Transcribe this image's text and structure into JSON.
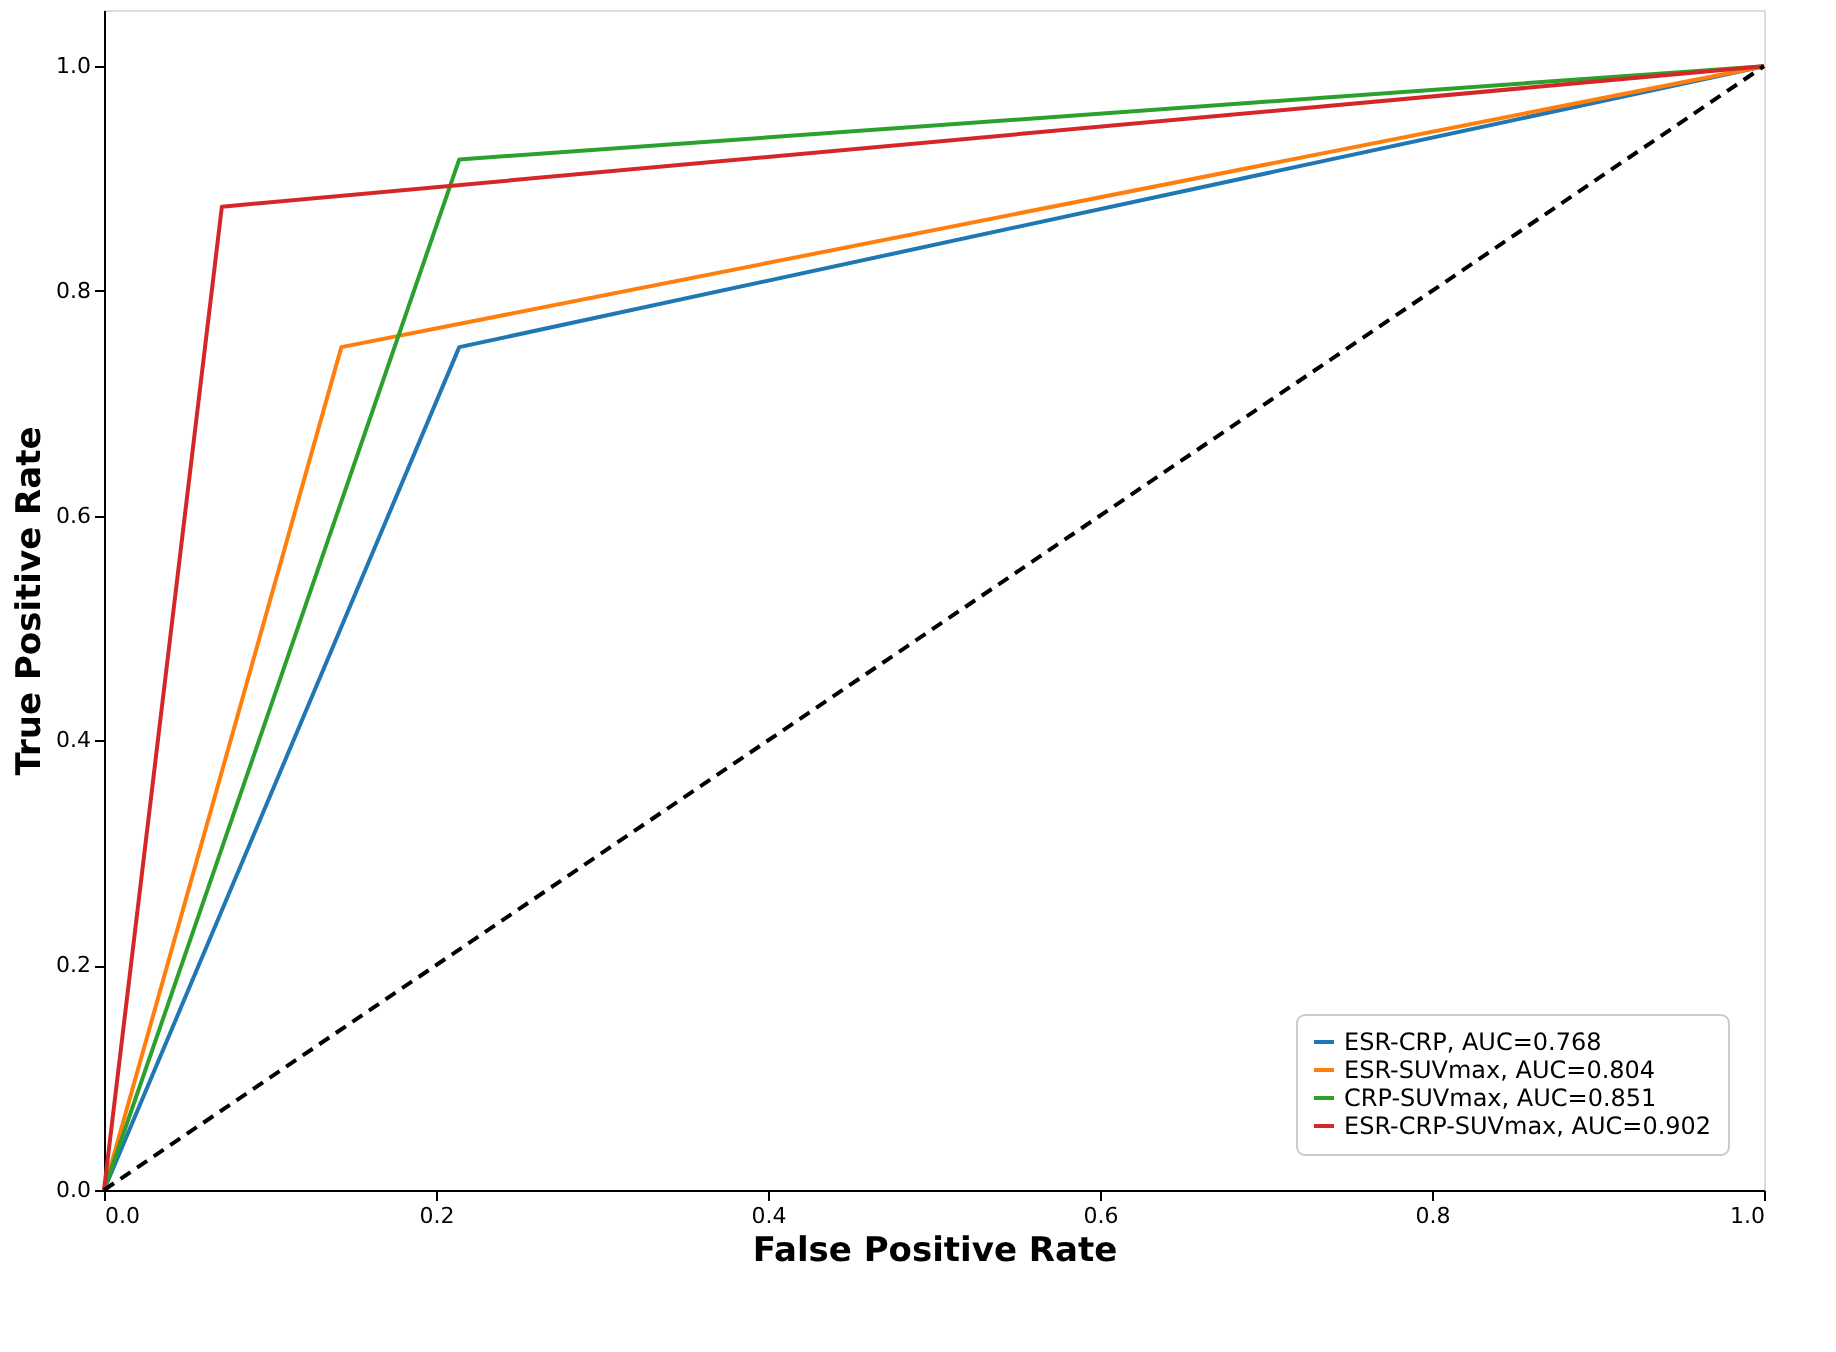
{
  "chart_data": {
    "type": "line",
    "xlabel": "False Positive Rate",
    "ylabel": "True Positive Rate",
    "xlim": [
      0,
      1
    ],
    "ylim": [
      0,
      1.05
    ],
    "xticks": [
      {
        "value": 0,
        "label": "0.0"
      },
      {
        "value": 0.2,
        "label": "0.2"
      },
      {
        "value": 0.4,
        "label": "0.4"
      },
      {
        "value": 0.6,
        "label": "0.6"
      },
      {
        "value": 0.8,
        "label": "0.8"
      },
      {
        "value": 1,
        "label": "1.0"
      }
    ],
    "yticks": [
      {
        "value": 0,
        "label": "0.0"
      },
      {
        "value": 0.2,
        "label": "0.2"
      },
      {
        "value": 0.4,
        "label": "0.4"
      },
      {
        "value": 0.6,
        "label": "0.6"
      },
      {
        "value": 0.8,
        "label": "0.8"
      },
      {
        "value": 1,
        "label": "1.0"
      }
    ],
    "grid": false,
    "legend": "bottom right",
    "line_style": "solid",
    "marker": "none",
    "series": [
      {
        "name": "ESR-CRP, AUC=0.768",
        "color": "#1f77b4",
        "x": [
          0,
          0.214,
          1
        ],
        "values": [
          0,
          0.75,
          1
        ]
      },
      {
        "name": "ESR-SUVmax, AUC=0.804",
        "color": "#ff7f0e",
        "x": [
          0,
          0.143,
          1
        ],
        "values": [
          0,
          0.75,
          1
        ]
      },
      {
        "name": "CRP-SUVmax, AUC=0.851",
        "color": "#2ca02c",
        "x": [
          0,
          0.214,
          1
        ],
        "values": [
          0,
          0.917,
          1
        ]
      },
      {
        "name": "ESR-CRP-SUVmax, AUC=0.902",
        "color": "#d62728",
        "x": [
          0,
          0.071,
          1
        ],
        "values": [
          0,
          0.875,
          1
        ]
      },
      {
        "color": "#000000",
        "x": [
          0,
          1
        ],
        "values": [
          0,
          1
        ],
        "line_style": "dashed"
      }
    ]
  }
}
